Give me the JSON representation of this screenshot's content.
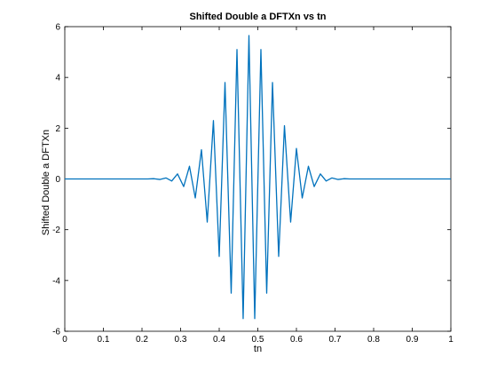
{
  "chart_data": {
    "type": "line",
    "title": "Shifted Double a DFTXn vs tn",
    "xlabel": "tn",
    "ylabel": "Shifted Double a DFTXn",
    "xlim": [
      0,
      1
    ],
    "ylim": [
      -6,
      6
    ],
    "xticks": [
      0,
      0.1,
      0.2,
      0.3,
      0.4,
      0.5,
      0.6,
      0.7,
      0.8,
      0.9,
      1
    ],
    "xtick_labels": [
      "0",
      "0.1",
      "0.2",
      "0.3",
      "0.4",
      "0.5",
      "0.6",
      "0.7",
      "0.8",
      "0.9",
      "1"
    ],
    "yticks": [
      -6,
      -4,
      -2,
      0,
      2,
      4,
      6
    ],
    "ytick_labels": [
      "-6",
      "-4",
      "-2",
      "0",
      "2",
      "4",
      "6"
    ],
    "grid": false,
    "line_color": "#0072bd",
    "series": [
      {
        "x": [
          0.0,
          0.015,
          0.031,
          0.046,
          0.062,
          0.077,
          0.092,
          0.108,
          0.123,
          0.138,
          0.154,
          0.169,
          0.185,
          0.2,
          0.215,
          0.231,
          0.246,
          0.262,
          0.277,
          0.292,
          0.308,
          0.323,
          0.338,
          0.354,
          0.369,
          0.385,
          0.4,
          0.415,
          0.431,
          0.446,
          0.462,
          0.477,
          0.492,
          0.508,
          0.523,
          0.538,
          0.554,
          0.569,
          0.585,
          0.6,
          0.615,
          0.631,
          0.646,
          0.662,
          0.677,
          0.692,
          0.708,
          0.723,
          0.738,
          0.754,
          0.769,
          0.785,
          0.8,
          0.815,
          0.831,
          0.846,
          0.862,
          0.877,
          0.892,
          0.908,
          0.923,
          0.938,
          0.954,
          0.969,
          0.985,
          1.0
        ],
        "y": [
          0,
          0,
          0,
          0,
          0,
          0,
          0,
          0,
          0,
          0,
          0,
          0,
          0,
          0,
          0,
          0.01,
          -0.02,
          0.04,
          -0.08,
          0.2,
          -0.3,
          0.5,
          -0.75,
          1.15,
          -1.7,
          2.3,
          -3.05,
          3.8,
          -4.5,
          5.1,
          -5.5,
          5.65,
          -5.5,
          5.1,
          -4.5,
          3.8,
          -3.05,
          2.1,
          -1.7,
          1.2,
          -0.75,
          0.5,
          -0.3,
          0.2,
          -0.08,
          0.04,
          -0.02,
          0.01,
          0,
          0,
          0,
          0,
          0,
          0,
          0,
          0,
          0,
          0,
          0,
          0,
          0,
          0,
          0,
          0,
          0,
          0
        ]
      }
    ]
  }
}
